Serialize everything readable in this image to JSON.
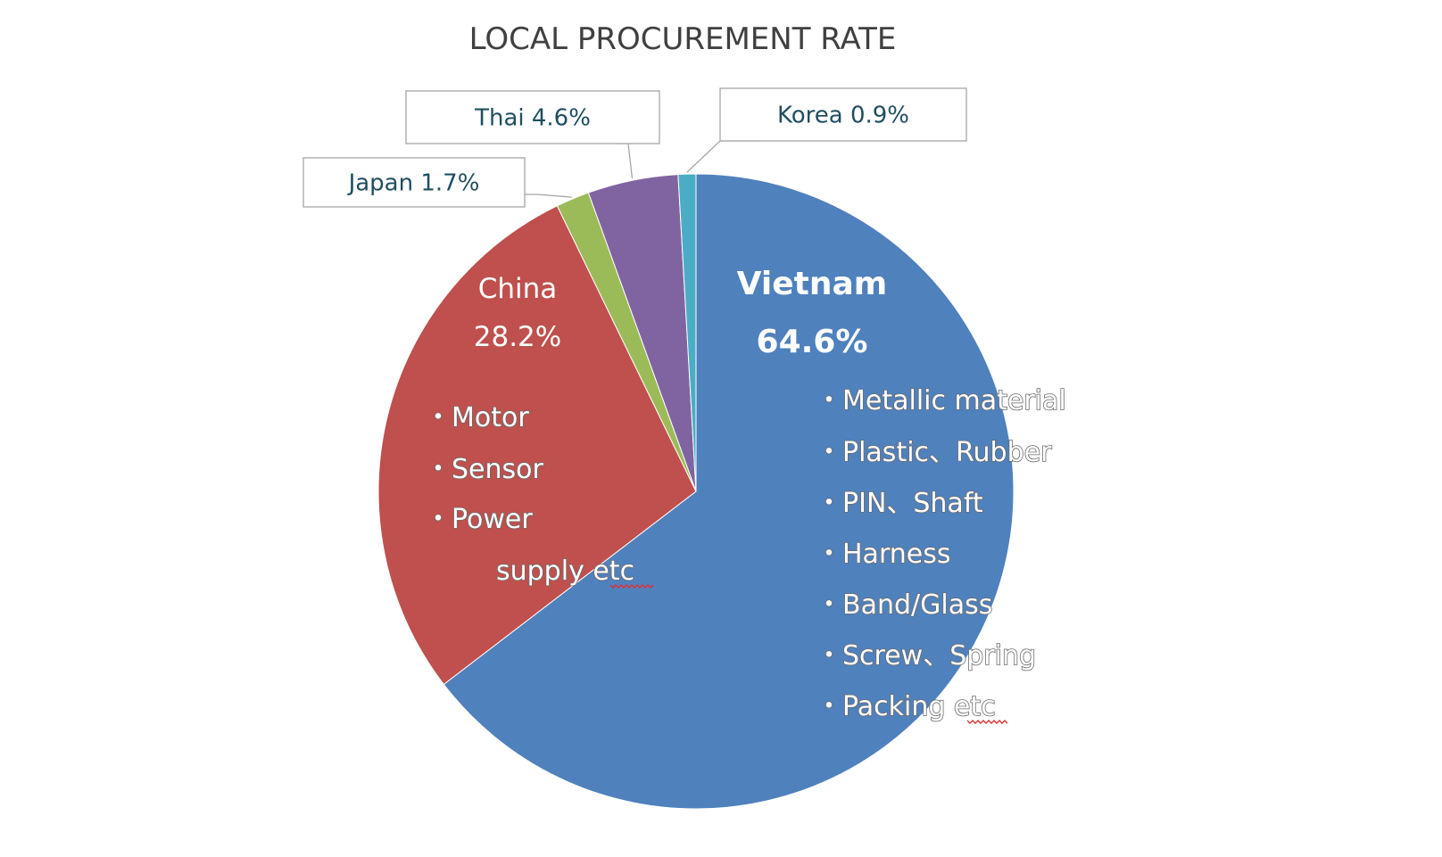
{
  "chart_data": {
    "type": "pie",
    "title": "LOCAL PROCUREMENT RATE",
    "slices": [
      {
        "name": "Vietnam",
        "value": 64.6,
        "label": "64.6%",
        "color": "#4f81bd"
      },
      {
        "name": "China",
        "value": 28.2,
        "label": "28.2%",
        "color": "#c0504d"
      },
      {
        "name": "Japan",
        "value": 1.7,
        "label": "Japan 1.7%",
        "color": "#9bbb59"
      },
      {
        "name": "Thai",
        "value": 4.6,
        "label": "Thai 4.6%",
        "color": "#8064a2"
      },
      {
        "name": "Korea",
        "value": 0.9,
        "label": "Korea 0.9%",
        "color": "#4bacc6"
      }
    ],
    "annotations": {
      "vietnam_items": [
        "・Metallic material",
        "・Plastic、Rubber",
        "・PIN、Shaft",
        "・Harness",
        "・Band/Glass",
        "・Screw、Spring",
        "・Packing etc"
      ],
      "china_items": [
        "・Motor",
        "・Sensor",
        "・Power",
        "supply  etc"
      ]
    }
  }
}
